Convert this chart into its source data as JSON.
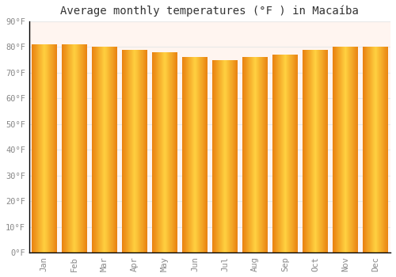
{
  "title": "Average monthly temperatures (°F ) in Macaíba",
  "months": [
    "Jan",
    "Feb",
    "Mar",
    "Apr",
    "May",
    "Jun",
    "Jul",
    "Aug",
    "Sep",
    "Oct",
    "Nov",
    "Dec"
  ],
  "values": [
    81,
    81,
    80,
    79,
    78,
    76,
    75,
    76,
    77,
    79,
    80,
    80
  ],
  "bar_color_center": "#FFD040",
  "bar_color_edge": "#F08000",
  "ylim": [
    0,
    90
  ],
  "yticks": [
    0,
    10,
    20,
    30,
    40,
    50,
    60,
    70,
    80,
    90
  ],
  "ytick_labels": [
    "0°F",
    "10°F",
    "20°F",
    "30°F",
    "40°F",
    "50°F",
    "60°F",
    "70°F",
    "80°F",
    "90°F"
  ],
  "background_color": "#FFFFFF",
  "plot_bg_color": "#FFF5F0",
  "grid_color": "#E8E8E8",
  "title_fontsize": 10,
  "tick_fontsize": 7.5,
  "tick_color": "#888888",
  "font_family": "monospace",
  "bar_width": 0.85
}
